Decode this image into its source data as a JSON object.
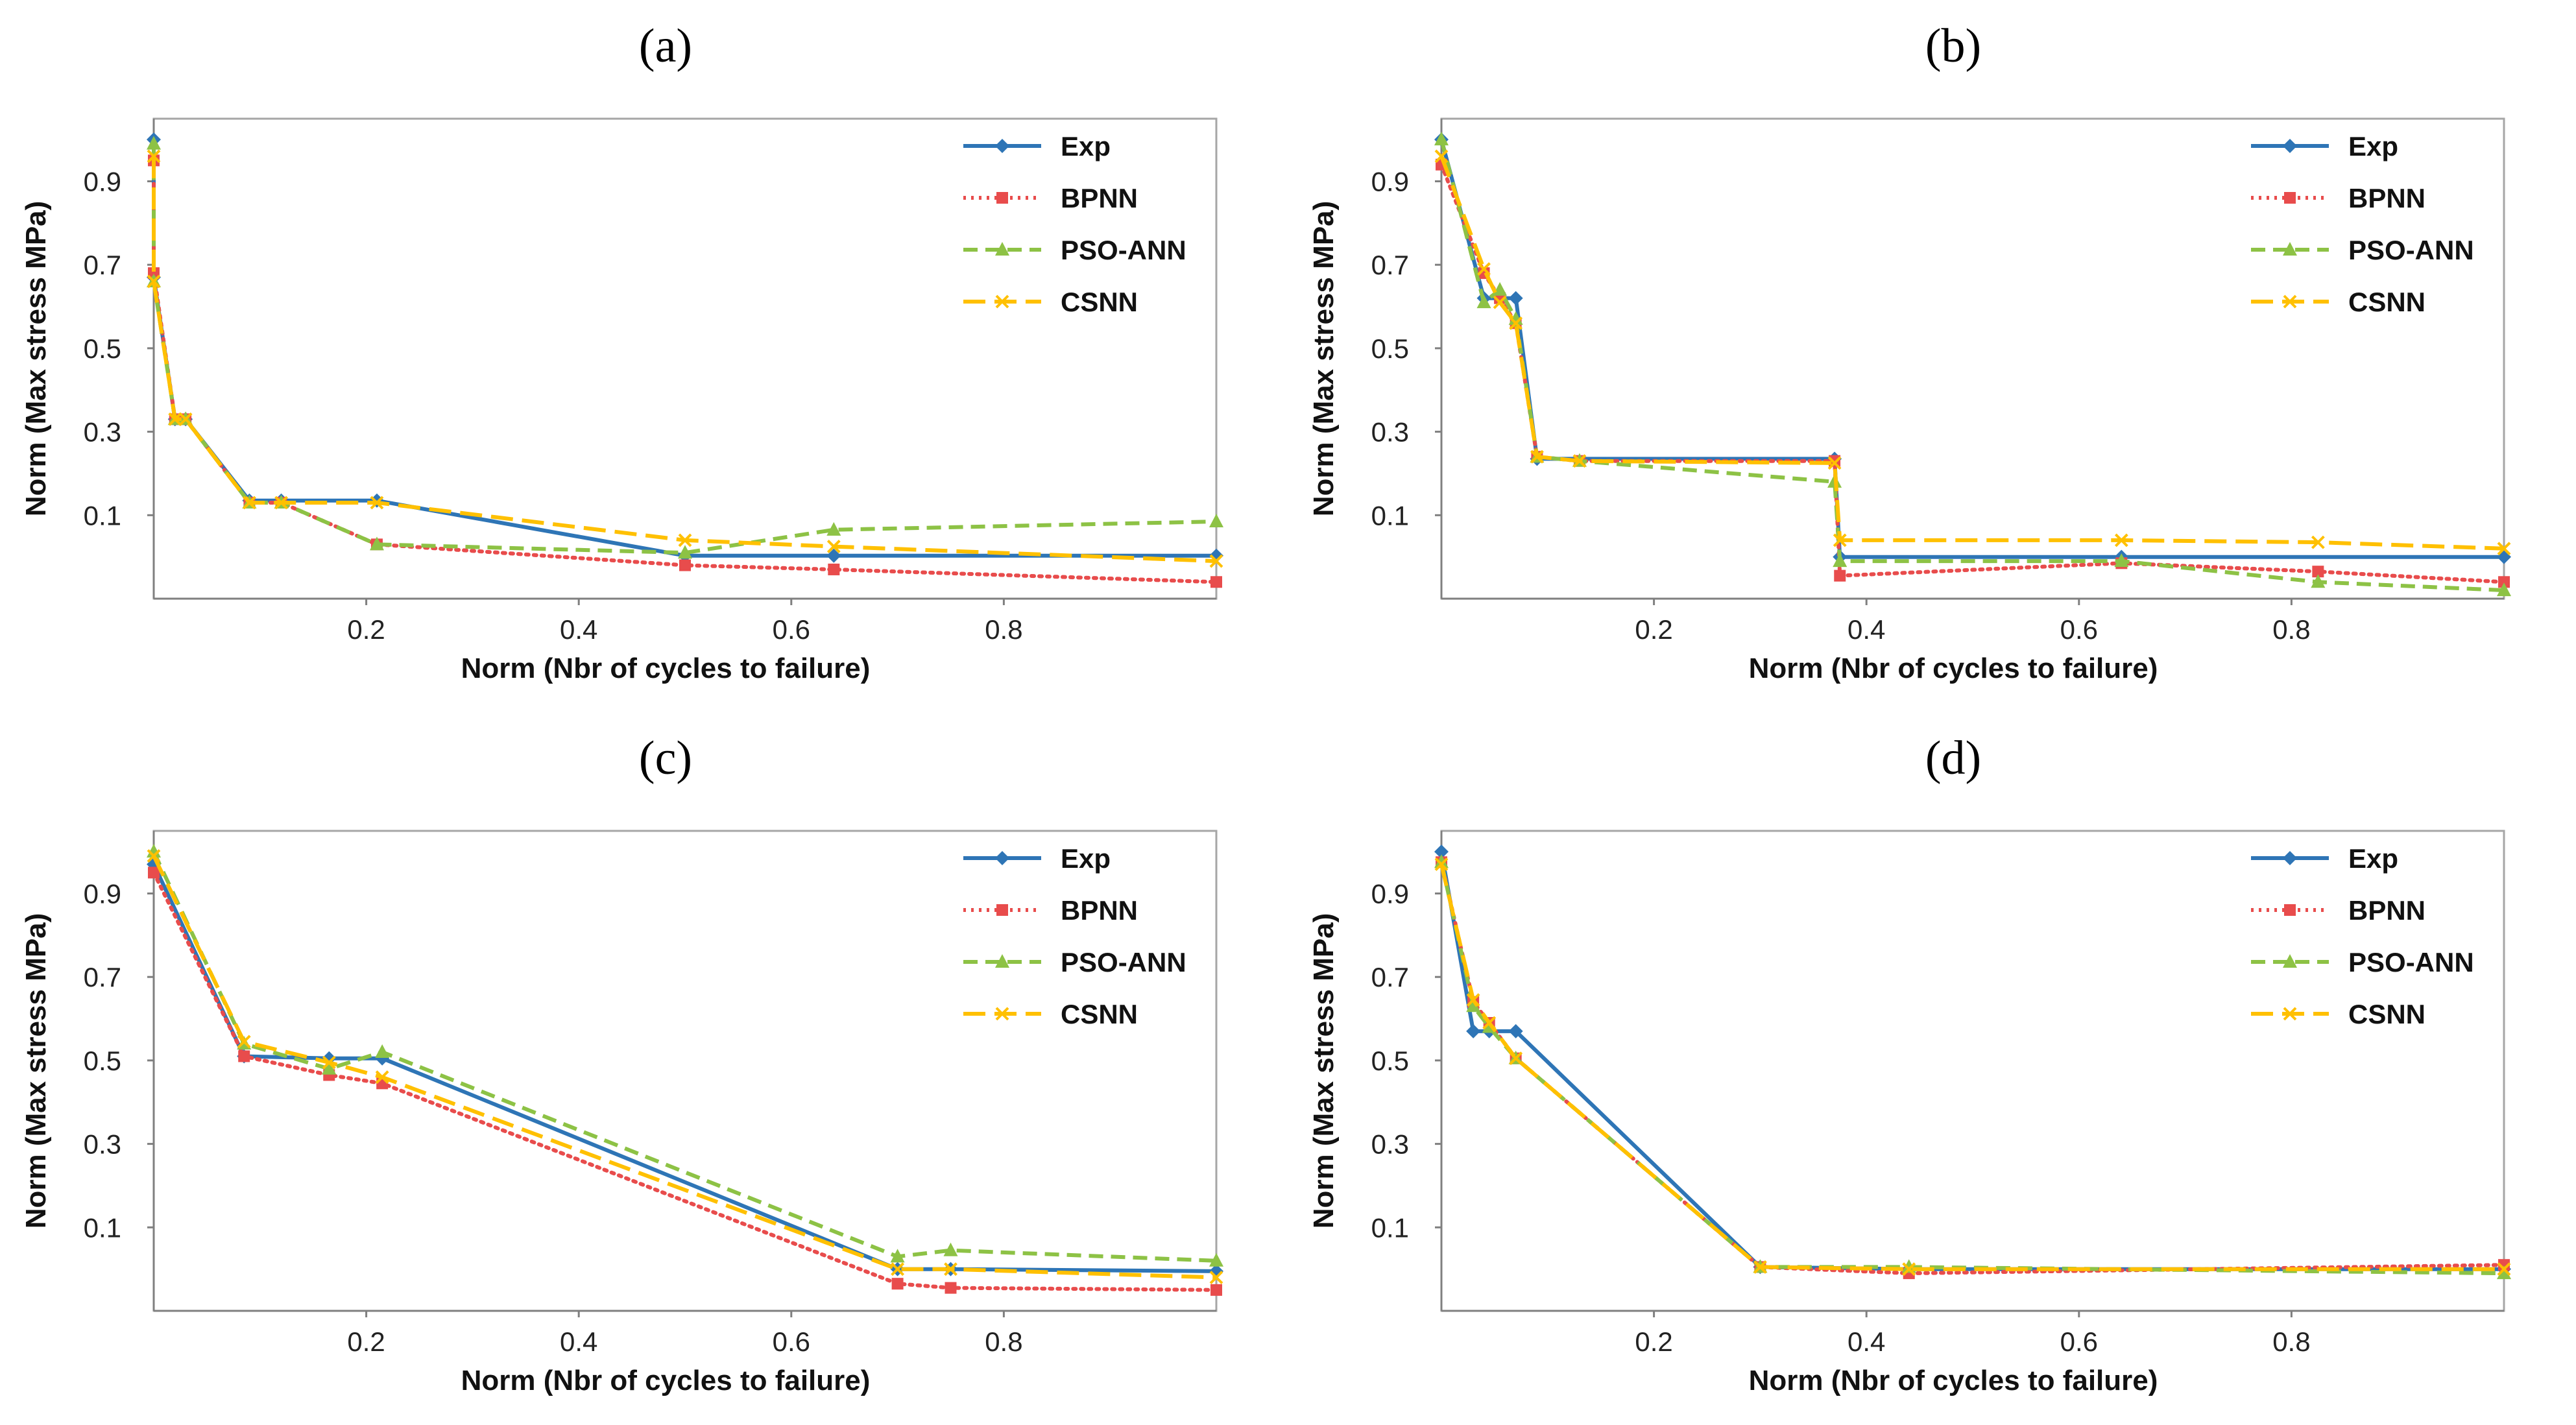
{
  "chart_data": [
    {
      "type": "line",
      "panel_label": "(a)",
      "xlabel": "Norm (Nbr of cycles to failure)",
      "ylabel": "Norm (Max stress MPa)",
      "xlim": [
        0,
        1
      ],
      "ylim": [
        -0.1,
        1.05
      ],
      "xticks": [
        0.2,
        0.4,
        0.6,
        0.8
      ],
      "yticks": [
        0.1,
        0.3,
        0.5,
        0.7,
        0.9
      ],
      "legend_position": "top-right",
      "series": [
        {
          "name": "Exp",
          "color": "#2e75b6",
          "marker": "diamond",
          "dash": "solid",
          "x": [
            0.0,
            0.0,
            0.02,
            0.03,
            0.09,
            0.12,
            0.21,
            0.5,
            0.64,
            1.0
          ],
          "y": [
            1.0,
            0.67,
            0.33,
            0.33,
            0.135,
            0.135,
            0.135,
            0.003,
            0.003,
            0.003
          ]
        },
        {
          "name": "BPNN",
          "color": "#e84c4c",
          "marker": "square",
          "dash": "dotted",
          "x": [
            0.0,
            0.0,
            0.02,
            0.03,
            0.09,
            0.12,
            0.21,
            0.5,
            0.64,
            1.0
          ],
          "y": [
            0.95,
            0.68,
            0.33,
            0.33,
            0.13,
            0.13,
            0.03,
            -0.02,
            -0.03,
            -0.06
          ]
        },
        {
          "name": "PSO-ANN",
          "color": "#8dc245",
          "marker": "triangle",
          "dash": "dashed",
          "x": [
            0.0,
            0.0,
            0.02,
            0.03,
            0.09,
            0.12,
            0.21,
            0.5,
            0.64,
            1.0
          ],
          "y": [
            0.99,
            0.66,
            0.33,
            0.33,
            0.13,
            0.13,
            0.03,
            0.01,
            0.065,
            0.085
          ]
        },
        {
          "name": "CSNN",
          "color": "#ffc000",
          "marker": "x",
          "dash": "longdash",
          "x": [
            0.0,
            0.0,
            0.02,
            0.03,
            0.09,
            0.12,
            0.21,
            0.5,
            0.64,
            1.0
          ],
          "y": [
            0.96,
            0.66,
            0.33,
            0.33,
            0.13,
            0.13,
            0.13,
            0.04,
            0.025,
            -0.01
          ]
        }
      ]
    },
    {
      "type": "line",
      "panel_label": "(b)",
      "xlabel": "Norm (Nbr of cycles to failure)",
      "ylabel": "Norm (Max stress MPa)",
      "xlim": [
        0,
        1
      ],
      "ylim": [
        -0.1,
        1.05
      ],
      "xticks": [
        0.2,
        0.4,
        0.6,
        0.8
      ],
      "yticks": [
        0.1,
        0.3,
        0.5,
        0.7,
        0.9
      ],
      "legend_position": "top-right",
      "series": [
        {
          "name": "Exp",
          "color": "#2e75b6",
          "marker": "diamond",
          "dash": "solid",
          "x": [
            0.0,
            0.04,
            0.07,
            0.09,
            0.37,
            0.375,
            0.64,
            1.0
          ],
          "y": [
            1.0,
            0.62,
            0.62,
            0.235,
            0.235,
            0.0,
            0.0,
            0.0
          ]
        },
        {
          "name": "BPNN",
          "color": "#e84c4c",
          "marker": "square",
          "dash": "dotted",
          "x": [
            0.0,
            0.04,
            0.055,
            0.07,
            0.09,
            0.13,
            0.37,
            0.375,
            0.64,
            0.825,
            1.0
          ],
          "y": [
            0.94,
            0.68,
            0.62,
            0.56,
            0.24,
            0.23,
            0.23,
            -0.045,
            -0.015,
            -0.035,
            -0.06
          ]
        },
        {
          "name": "PSO-ANN",
          "color": "#8dc245",
          "marker": "triangle",
          "dash": "dashed",
          "x": [
            0.0,
            0.04,
            0.055,
            0.07,
            0.09,
            0.13,
            0.37,
            0.375,
            0.64,
            0.825,
            1.0
          ],
          "y": [
            1.0,
            0.61,
            0.64,
            0.57,
            0.24,
            0.23,
            0.18,
            -0.01,
            -0.01,
            -0.06,
            -0.08
          ]
        },
        {
          "name": "CSNN",
          "color": "#ffc000",
          "marker": "x",
          "dash": "longdash",
          "x": [
            0.0,
            0.04,
            0.055,
            0.07,
            0.09,
            0.13,
            0.37,
            0.375,
            0.64,
            0.825,
            1.0
          ],
          "y": [
            0.96,
            0.69,
            0.61,
            0.56,
            0.24,
            0.23,
            0.225,
            0.04,
            0.04,
            0.035,
            0.02
          ]
        }
      ]
    },
    {
      "type": "line",
      "panel_label": "(c)",
      "xlabel": "Norm (Nbr of cycles to failure)",
      "ylabel": "Norm (Max stress MPa)",
      "xlim": [
        0,
        1
      ],
      "ylim": [
        -0.1,
        1.05
      ],
      "xticks": [
        0.2,
        0.4,
        0.6,
        0.8
      ],
      "yticks": [
        0.1,
        0.3,
        0.5,
        0.7,
        0.9
      ],
      "legend_position": "top-right",
      "series": [
        {
          "name": "Exp",
          "color": "#2e75b6",
          "marker": "diamond",
          "dash": "solid",
          "x": [
            0.0,
            0.085,
            0.165,
            0.215,
            0.7,
            0.75,
            1.0
          ],
          "y": [
            0.97,
            0.51,
            0.505,
            0.505,
            0.0,
            0.0,
            -0.005
          ]
        },
        {
          "name": "BPNN",
          "color": "#e84c4c",
          "marker": "square",
          "dash": "dotted",
          "x": [
            0.0,
            0.085,
            0.165,
            0.215,
            0.7,
            0.75,
            1.0
          ],
          "y": [
            0.95,
            0.51,
            0.465,
            0.445,
            -0.035,
            -0.045,
            -0.05
          ]
        },
        {
          "name": "PSO-ANN",
          "color": "#8dc245",
          "marker": "triangle",
          "dash": "dashed",
          "x": [
            0.0,
            0.085,
            0.165,
            0.215,
            0.7,
            0.75,
            1.0
          ],
          "y": [
            1.0,
            0.54,
            0.48,
            0.52,
            0.03,
            0.045,
            0.02
          ]
        },
        {
          "name": "CSNN",
          "color": "#ffc000",
          "marker": "x",
          "dash": "longdash",
          "x": [
            0.0,
            0.085,
            0.165,
            0.215,
            0.7,
            0.75,
            1.0
          ],
          "y": [
            0.99,
            0.545,
            0.495,
            0.46,
            0.0,
            0.0,
            -0.02
          ]
        }
      ]
    },
    {
      "type": "line",
      "panel_label": "(d)",
      "xlabel": "Norm (Nbr of cycles to failure)",
      "ylabel": "Norm (Max stress MPa)",
      "xlim": [
        0,
        1
      ],
      "ylim": [
        -0.1,
        1.05
      ],
      "xticks": [
        0.2,
        0.4,
        0.6,
        0.8
      ],
      "yticks": [
        0.1,
        0.3,
        0.5,
        0.7,
        0.9
      ],
      "legend_position": "top-right",
      "series": [
        {
          "name": "Exp",
          "color": "#2e75b6",
          "marker": "diamond",
          "dash": "solid",
          "x": [
            0.0,
            0.03,
            0.045,
            0.07,
            0.3,
            0.44,
            1.0
          ],
          "y": [
            1.0,
            0.57,
            0.57,
            0.57,
            0.005,
            0.0,
            0.0
          ]
        },
        {
          "name": "BPNN",
          "color": "#e84c4c",
          "marker": "square",
          "dash": "dotted",
          "x": [
            0.0,
            0.03,
            0.045,
            0.07,
            0.3,
            0.44,
            1.0
          ],
          "y": [
            0.975,
            0.64,
            0.59,
            0.505,
            0.005,
            -0.01,
            0.01
          ]
        },
        {
          "name": "PSO-ANN",
          "color": "#8dc245",
          "marker": "triangle",
          "dash": "dashed",
          "x": [
            0.0,
            0.03,
            0.045,
            0.07,
            0.3,
            0.44,
            1.0
          ],
          "y": [
            0.975,
            0.63,
            0.58,
            0.505,
            0.005,
            0.005,
            -0.01
          ]
        },
        {
          "name": "CSNN",
          "color": "#ffc000",
          "marker": "x",
          "dash": "longdash",
          "x": [
            0.0,
            0.03,
            0.045,
            0.07,
            0.3,
            0.44,
            1.0
          ],
          "y": [
            0.97,
            0.645,
            0.59,
            0.505,
            0.005,
            0.0,
            0.0
          ]
        }
      ]
    }
  ]
}
